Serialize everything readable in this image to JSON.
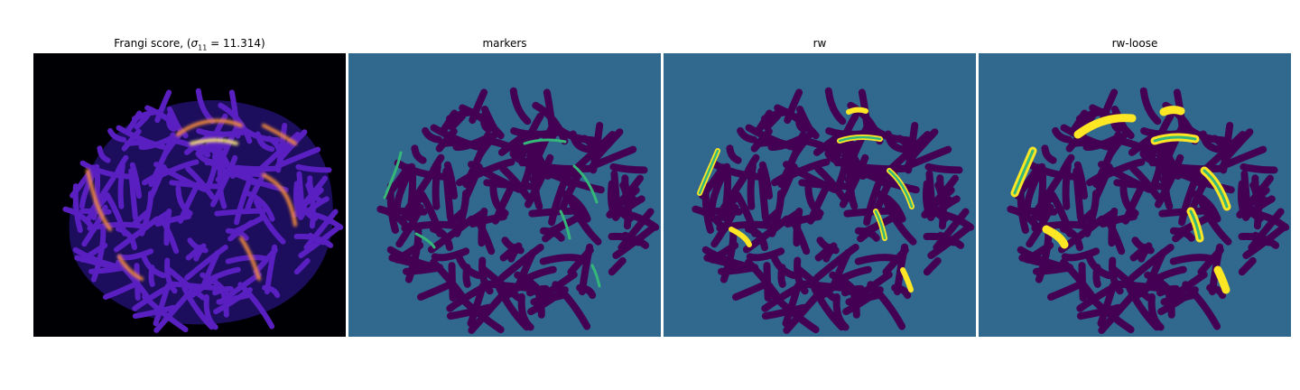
{
  "panels": [
    {
      "id": "frangi",
      "title_text": "Frangi score, (",
      "title_sigma": "σ",
      "title_sub": "11",
      "title_value": " = 11.314)",
      "colormap": "magma"
    },
    {
      "id": "markers",
      "title": "markers",
      "colormap": "viridis"
    },
    {
      "id": "rw",
      "title": "rw",
      "colormap": "viridis"
    },
    {
      "id": "rw-loose",
      "title": "rw-loose",
      "colormap": "viridis"
    }
  ],
  "colors": {
    "magma_bg": "#000004",
    "magma_low": "#2c1a8c",
    "magma_mid": "#8a2bd6",
    "magma_high": "#f28a3c",
    "magma_peak": "#fbe47a",
    "viridis_bg": "#31688e",
    "viridis_low": "#440154",
    "viridis_mid": "#35b779",
    "viridis_high": "#fde725"
  }
}
